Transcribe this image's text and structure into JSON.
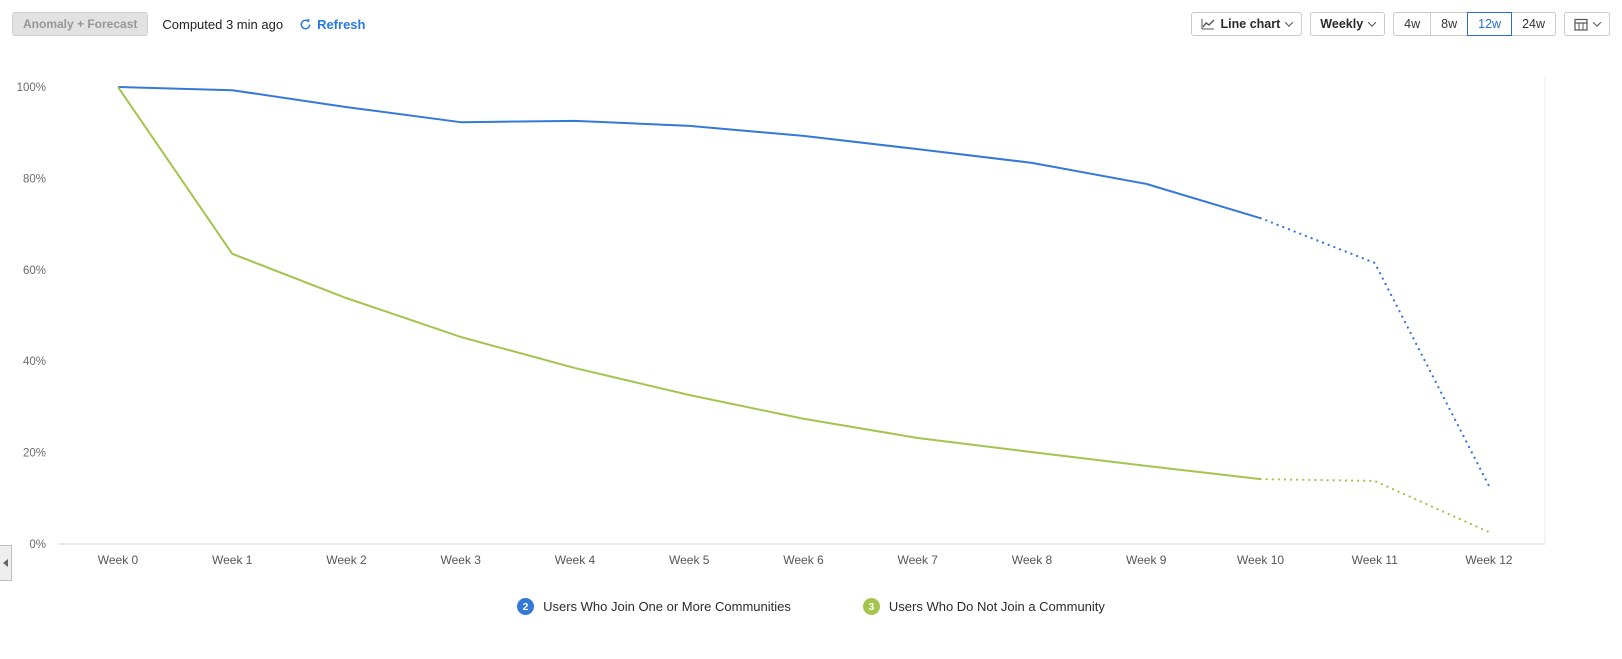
{
  "toolbar": {
    "anomaly_button": "Anomaly + Forecast",
    "computed_text": "Computed 3 min ago",
    "refresh_label": "Refresh",
    "chart_type": "Line chart",
    "granularity": "Weekly",
    "ranges": [
      "4w",
      "8w",
      "12w",
      "24w"
    ],
    "selected_range": "12w"
  },
  "colors": {
    "accent_blue": "#2a7ae4",
    "series_blue": "#3579d8",
    "series_green": "#a4c44e"
  },
  "legend": [
    {
      "num": "2",
      "label": "Users Who Join One or More Communities",
      "color": "#3579d8"
    },
    {
      "num": "3",
      "label": "Users Who Do Not Join a Community",
      "color": "#a4c44e"
    }
  ],
  "chart_data": {
    "type": "line",
    "title": "",
    "xlabel": "",
    "ylabel": "",
    "ylim": [
      0,
      100
    ],
    "grid": false,
    "legend_position": "bottom",
    "x_labels": [
      "Week 0",
      "Week 1",
      "Week 2",
      "Week 3",
      "Week 4",
      "Week 5",
      "Week 6",
      "Week 7",
      "Week 8",
      "Week 9",
      "Week 10",
      "Week 11",
      "Week 12"
    ],
    "y_ticks": [
      "0%",
      "20%",
      "40%",
      "60%",
      "80%",
      "100%"
    ],
    "forecast_from_index": 10,
    "forecast_style": "dotted",
    "series": [
      {
        "name": "Users Who Join One or More Communities",
        "color": "#3579d8",
        "values": [
          100,
          99.3,
          95.6,
          92.3,
          92.6,
          91.5,
          89.3,
          86.4,
          83.4,
          78.8,
          71.3,
          61.5,
          12.7
        ]
      },
      {
        "name": "Users Who Do Not Join a Community",
        "color": "#a4c44e",
        "values": [
          100,
          63.5,
          53.8,
          45.3,
          38.5,
          32.6,
          27.4,
          23.2,
          20.1,
          17.1,
          14.2,
          13.8,
          2.6
        ]
      }
    ]
  }
}
